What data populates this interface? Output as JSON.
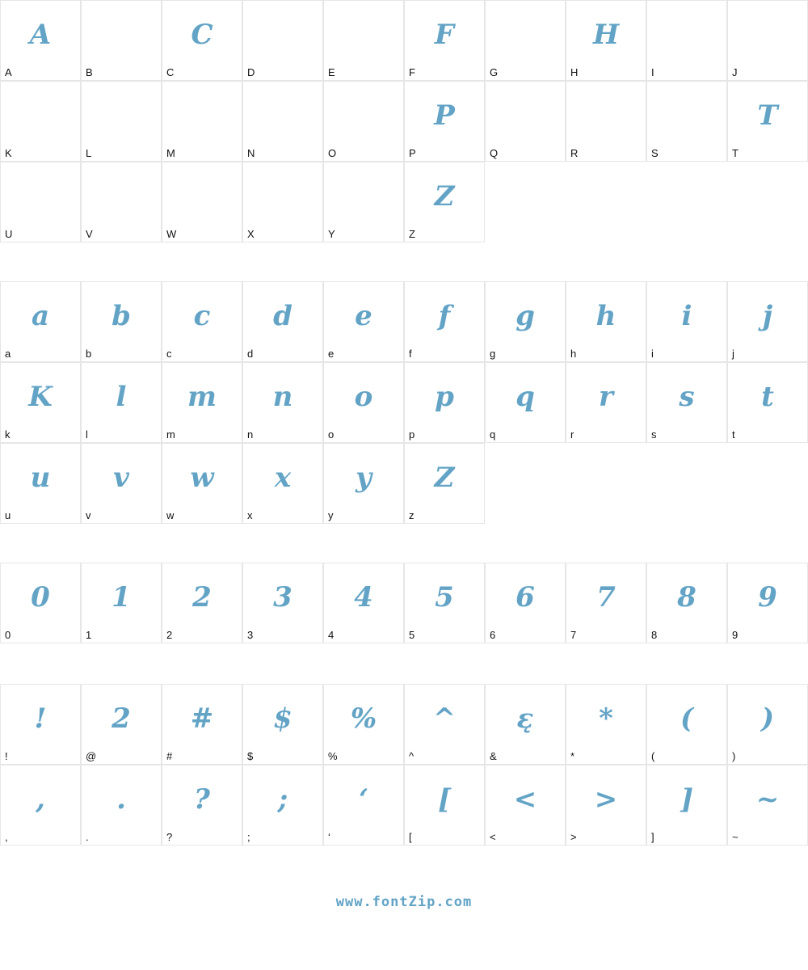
{
  "glyph_color": "#62a3c6",
  "sections": [
    {
      "name": "uppercase",
      "cells": [
        {
          "label": "A",
          "glyph": "A"
        },
        {
          "label": "B",
          "glyph": ""
        },
        {
          "label": "C",
          "glyph": "C"
        },
        {
          "label": "D",
          "glyph": ""
        },
        {
          "label": "E",
          "glyph": ""
        },
        {
          "label": "F",
          "glyph": "F"
        },
        {
          "label": "G",
          "glyph": ""
        },
        {
          "label": "H",
          "glyph": "H"
        },
        {
          "label": "I",
          "glyph": ""
        },
        {
          "label": "J",
          "glyph": ""
        },
        {
          "label": "K",
          "glyph": ""
        },
        {
          "label": "L",
          "glyph": ""
        },
        {
          "label": "M",
          "glyph": ""
        },
        {
          "label": "N",
          "glyph": ""
        },
        {
          "label": "O",
          "glyph": ""
        },
        {
          "label": "P",
          "glyph": "P"
        },
        {
          "label": "Q",
          "glyph": ""
        },
        {
          "label": "R",
          "glyph": ""
        },
        {
          "label": "S",
          "glyph": ""
        },
        {
          "label": "T",
          "glyph": "T"
        },
        {
          "label": "U",
          "glyph": ""
        },
        {
          "label": "V",
          "glyph": ""
        },
        {
          "label": "W",
          "glyph": ""
        },
        {
          "label": "X",
          "glyph": ""
        },
        {
          "label": "Y",
          "glyph": ""
        },
        {
          "label": "Z",
          "glyph": "Z"
        }
      ]
    },
    {
      "name": "lowercase",
      "cells": [
        {
          "label": "a",
          "glyph": "a"
        },
        {
          "label": "b",
          "glyph": "b"
        },
        {
          "label": "c",
          "glyph": "c"
        },
        {
          "label": "d",
          "glyph": "d"
        },
        {
          "label": "e",
          "glyph": "e"
        },
        {
          "label": "f",
          "glyph": "f"
        },
        {
          "label": "g",
          "glyph": "g"
        },
        {
          "label": "h",
          "glyph": "h"
        },
        {
          "label": "i",
          "glyph": "i"
        },
        {
          "label": "j",
          "glyph": "j"
        },
        {
          "label": "k",
          "glyph": "K"
        },
        {
          "label": "l",
          "glyph": "l"
        },
        {
          "label": "m",
          "glyph": "m"
        },
        {
          "label": "n",
          "glyph": "n"
        },
        {
          "label": "o",
          "glyph": "o"
        },
        {
          "label": "p",
          "glyph": "p"
        },
        {
          "label": "q",
          "glyph": "q"
        },
        {
          "label": "r",
          "glyph": "r"
        },
        {
          "label": "s",
          "glyph": "s"
        },
        {
          "label": "t",
          "glyph": "t"
        },
        {
          "label": "u",
          "glyph": "u"
        },
        {
          "label": "v",
          "glyph": "v"
        },
        {
          "label": "w",
          "glyph": "w"
        },
        {
          "label": "x",
          "glyph": "x"
        },
        {
          "label": "y",
          "glyph": "y"
        },
        {
          "label": "z",
          "glyph": "Z"
        }
      ]
    },
    {
      "name": "digits",
      "cells": [
        {
          "label": "0",
          "glyph": "0"
        },
        {
          "label": "1",
          "glyph": "1"
        },
        {
          "label": "2",
          "glyph": "2"
        },
        {
          "label": "3",
          "glyph": "3"
        },
        {
          "label": "4",
          "glyph": "4"
        },
        {
          "label": "5",
          "glyph": "5"
        },
        {
          "label": "6",
          "glyph": "6"
        },
        {
          "label": "7",
          "glyph": "7"
        },
        {
          "label": "8",
          "glyph": "8"
        },
        {
          "label": "9",
          "glyph": "9"
        }
      ]
    },
    {
      "name": "symbols",
      "cells": [
        {
          "label": "!",
          "glyph": "!"
        },
        {
          "label": "@",
          "glyph": "2"
        },
        {
          "label": "#",
          "glyph": "#"
        },
        {
          "label": "$",
          "glyph": "$"
        },
        {
          "label": "%",
          "glyph": "%"
        },
        {
          "label": "^",
          "glyph": "^"
        },
        {
          "label": "&",
          "glyph": "ɛ̨"
        },
        {
          "label": "*",
          "glyph": "*"
        },
        {
          "label": "(",
          "glyph": "("
        },
        {
          "label": ")",
          "glyph": ")"
        },
        {
          "label": ",",
          "glyph": ","
        },
        {
          "label": ".",
          "glyph": "."
        },
        {
          "label": "?",
          "glyph": "?"
        },
        {
          "label": ";",
          "glyph": ";"
        },
        {
          "label": "‘",
          "glyph": "‘"
        },
        {
          "label": "[",
          "glyph": "["
        },
        {
          "label": "<",
          "glyph": "<"
        },
        {
          "label": ">",
          "glyph": ">"
        },
        {
          "label": "]",
          "glyph": "]"
        },
        {
          "label": "~",
          "glyph": "~"
        }
      ]
    }
  ],
  "footer": {
    "text": "www.fontZip.com"
  }
}
